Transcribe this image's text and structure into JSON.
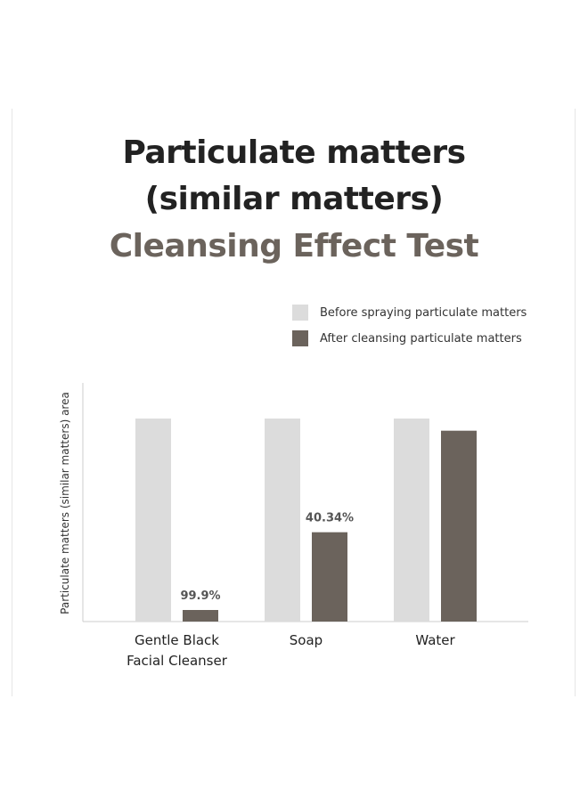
{
  "title_lines": [
    "Particulate matters",
    "(similar matters)",
    "Cleansing Effect Test"
  ],
  "colors": {
    "before": "#dcdcdc",
    "after": "#6b635c",
    "title_accent": "#6b635c",
    "text": "#222222",
    "axis": "#cccccc"
  },
  "chart_data": {
    "type": "bar",
    "title": "Particulate matters (similar matters) Cleansing Effect Test",
    "ylabel": "Particulate matters (similar matters) area",
    "xlabel": "",
    "categories": [
      [
        "Gentle Black",
        "Facial Cleanser"
      ],
      [
        "Soap"
      ],
      [
        "Water"
      ]
    ],
    "series": [
      {
        "name": "Before spraying particulate matters",
        "values": [
          100,
          100,
          100
        ]
      },
      {
        "name": "After cleansing particulate matters",
        "values": [
          5.7,
          44,
          94
        ]
      }
    ],
    "data_labels": [
      "99.9%",
      "40.34%",
      ""
    ],
    "ylim": [
      0,
      100
    ],
    "grid": false,
    "legend_position": "top-right"
  }
}
